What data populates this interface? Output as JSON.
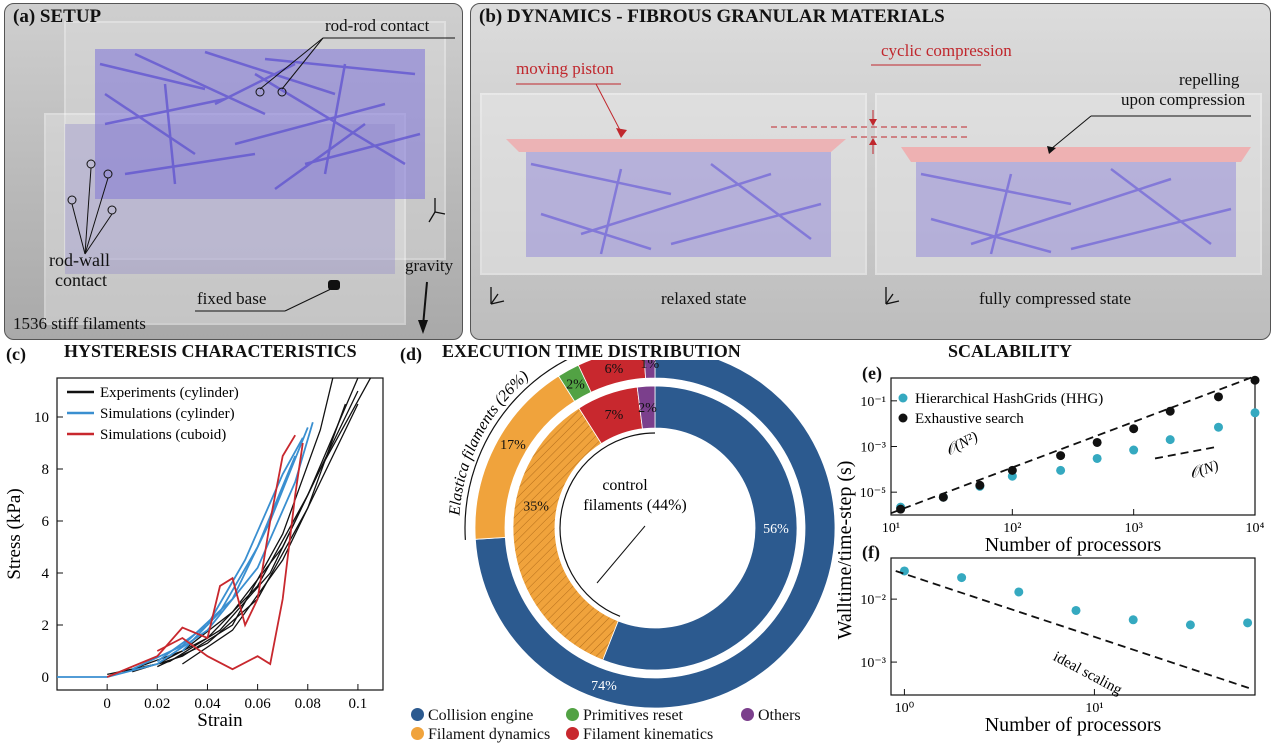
{
  "panel_a": {
    "title": "(a) SETUP",
    "rod_rod_contact": "rod-rod contact",
    "rod_wall_contact_line1": "rod-wall",
    "rod_wall_contact_line2": "contact",
    "fixed_base": "fixed base",
    "gravity": "gravity",
    "filaments": "1536 stiff filaments"
  },
  "panel_b": {
    "title": "(b) DYNAMICS - FIBROUS GRANULAR MATERIALS",
    "moving_piston": "moving piston",
    "cyclic_compression": "cyclic compression",
    "repelling_line1": "repelling",
    "repelling_line2": "upon compression",
    "relaxed_state": "relaxed state",
    "compressed_state": "fully compressed state"
  },
  "panel_c": {
    "label": "(c)",
    "title": "HYSTERESIS CHARACTERISTICS"
  },
  "panel_d": {
    "label": "(d)",
    "title": "EXECUTION TIME DISTRIBUTION",
    "elastica_label": "Elastica filaments (26%)",
    "control_label_line1": "control",
    "control_label_line2": "filaments (44%)",
    "outer_pcts": [
      "74%",
      "17%",
      "2%",
      "6%",
      "1%"
    ],
    "inner_pcts": [
      "56%",
      "35%",
      "7%",
      "2%"
    ],
    "legend": [
      {
        "label": "Collision engine",
        "color": "#2c5a8f"
      },
      {
        "label": "Primitives reset",
        "color": "#52a244"
      },
      {
        "label": "Others",
        "color": "#7b3f8c"
      },
      {
        "label": "Filament dynamics",
        "color": "#f0a33c"
      },
      {
        "label": "Filament kinematics",
        "color": "#c8282e"
      }
    ]
  },
  "panel_e": {
    "label": "(e)",
    "title": "SCALABILITY",
    "big_ylabel": "Walltime/time-step (s)",
    "on2": "𝒪(N²)",
    "on": "𝒪(N)"
  },
  "panel_f": {
    "label": "(f)",
    "ideal": "ideal scaling"
  },
  "chart_data": [
    {
      "type": "line",
      "id": "c",
      "xlabel": "Strain",
      "ylabel": "Stress (kPa)",
      "xlim": [
        -0.02,
        0.11
      ],
      "ylim": [
        -0.5,
        11.5
      ],
      "xticks": [
        0,
        0.02,
        0.04,
        0.06,
        0.08,
        0.1
      ],
      "xtick_labels": [
        "0",
        "0.02",
        "0.04",
        "0.06",
        "0.08",
        "0.1"
      ],
      "yticks": [
        0,
        2,
        4,
        6,
        8,
        10
      ],
      "series": [
        {
          "name": "Experiments (cylinder)",
          "color": "#111111",
          "curves": [
            [
              [
                0,
                0.1
              ],
              [
                0.02,
                0.5
              ],
              [
                0.04,
                1.5
              ],
              [
                0.06,
                3.5
              ],
              [
                0.08,
                7
              ],
              [
                0.1,
                11.5
              ]
            ],
            [
              [
                0.005,
                0.2
              ],
              [
                0.025,
                0.6
              ],
              [
                0.045,
                1.8
              ],
              [
                0.065,
                4
              ],
              [
                0.085,
                8
              ],
              [
                0.105,
                11.5
              ]
            ],
            [
              [
                0.01,
                0.3
              ],
              [
                0.03,
                1
              ],
              [
                0.05,
                2.5
              ],
              [
                0.07,
                5
              ],
              [
                0.09,
                9
              ],
              [
                0.1,
                11
              ]
            ],
            [
              [
                0.02,
                0.4
              ],
              [
                0.04,
                1.3
              ],
              [
                0.06,
                3
              ],
              [
                0.08,
                6.5
              ],
              [
                0.095,
                10.5
              ]
            ],
            [
              [
                0.01,
                0.2
              ],
              [
                0.03,
                0.8
              ],
              [
                0.05,
                2
              ],
              [
                0.07,
                5.5
              ],
              [
                0.085,
                9.5
              ],
              [
                0.09,
                11.5
              ]
            ],
            [
              [
                0.03,
                0.5
              ],
              [
                0.05,
                1.8
              ],
              [
                0.07,
                4.5
              ],
              [
                0.09,
                8.5
              ],
              [
                0.1,
                10.5
              ]
            ]
          ]
        },
        {
          "name": "Simulations (cylinder)",
          "color": "#3a8fd0",
          "curves": [
            [
              [
                -0.02,
                0
              ],
              [
                0,
                0
              ],
              [
                0.02,
                0.5
              ],
              [
                0.04,
                1.8
              ],
              [
                0.06,
                4.2
              ],
              [
                0.075,
                7.5
              ],
              [
                0.082,
                9.8
              ]
            ],
            [
              [
                0.01,
                0.3
              ],
              [
                0.03,
                1.2
              ],
              [
                0.05,
                3
              ],
              [
                0.065,
                6
              ],
              [
                0.08,
                9.6
              ]
            ],
            [
              [
                0.02,
                0.6
              ],
              [
                0.04,
                2
              ],
              [
                0.055,
                4.5
              ],
              [
                0.07,
                7.8
              ],
              [
                0.078,
                9.2
              ]
            ],
            [
              [
                0.03,
                1
              ],
              [
                0.045,
                2.5
              ],
              [
                0.06,
                5
              ],
              [
                0.075,
                8.5
              ]
            ]
          ]
        },
        {
          "name": "Simulations (cuboid)",
          "color": "#c8282e",
          "curves": [
            [
              [
                0,
                0
              ],
              [
                0.02,
                0.8
              ],
              [
                0.03,
                1.9
              ],
              [
                0.04,
                1.5
              ],
              [
                0.045,
                3.5
              ],
              [
                0.05,
                3.8
              ],
              [
                0.055,
                2
              ],
              [
                0.06,
                3
              ],
              [
                0.065,
                6
              ],
              [
                0.07,
                8.5
              ],
              [
                0.075,
                9.3
              ]
            ],
            [
              [
                0.02,
                1
              ],
              [
                0.03,
                1.5
              ],
              [
                0.04,
                0.8
              ],
              [
                0.05,
                0.3
              ],
              [
                0.06,
                0.8
              ],
              [
                0.065,
                0.5
              ],
              [
                0.07,
                3
              ],
              [
                0.075,
                7
              ],
              [
                0.078,
                9
              ]
            ]
          ]
        }
      ]
    },
    {
      "type": "scatter",
      "id": "e",
      "xlabel": "Number of processors",
      "xscale": "log",
      "yscale": "log",
      "xlim": [
        10,
        10000
      ],
      "ylim": [
        1e-06,
        1
      ],
      "yticks": [
        1e-05,
        0.001,
        0.1
      ],
      "ytick_labels": [
        "10⁻⁵",
        "10⁻³",
        "10⁻¹"
      ],
      "xticks": [
        10,
        100,
        1000,
        10000
      ],
      "xtick_labels": [
        "10¹",
        "10²",
        "10³",
        "10⁴"
      ],
      "series": [
        {
          "name": "Hierarchical HashGrids (HHG)",
          "color": "#35a9c0",
          "x": [
            12,
            27,
            54,
            100,
            250,
            500,
            1000,
            2000,
            5000,
            10000
          ],
          "y": [
            2.2e-06,
            6e-06,
            1.8e-05,
            5e-05,
            9e-05,
            0.0003,
            0.0007,
            0.002,
            0.007,
            0.03
          ]
        },
        {
          "name": "Exhaustive search",
          "color": "#111111",
          "x": [
            12,
            27,
            54,
            100,
            250,
            500,
            1000,
            2000,
            5000,
            10000
          ],
          "y": [
            1.8e-06,
            6e-06,
            2e-05,
            9e-05,
            0.0004,
            0.0015,
            0.006,
            0.035,
            0.15,
            0.8
          ]
        }
      ]
    },
    {
      "type": "scatter",
      "id": "f",
      "xlabel": "Number of processors",
      "xscale": "log",
      "yscale": "log",
      "xlim": [
        0.85,
        70
      ],
      "ylim": [
        0.0003,
        0.045
      ],
      "yticks": [
        0.001,
        0.01
      ],
      "ytick_labels": [
        "10⁻³",
        "10⁻²"
      ],
      "xticks": [
        1,
        10
      ],
      "xtick_labels": [
        "10⁰",
        "10¹"
      ],
      "series": [
        {
          "name": "",
          "color": "#35a9c0",
          "x": [
            1,
            2,
            4,
            8,
            16,
            32,
            64
          ],
          "y": [
            0.028,
            0.022,
            0.013,
            0.0066,
            0.0047,
            0.0039,
            0.0042
          ]
        }
      ]
    }
  ]
}
